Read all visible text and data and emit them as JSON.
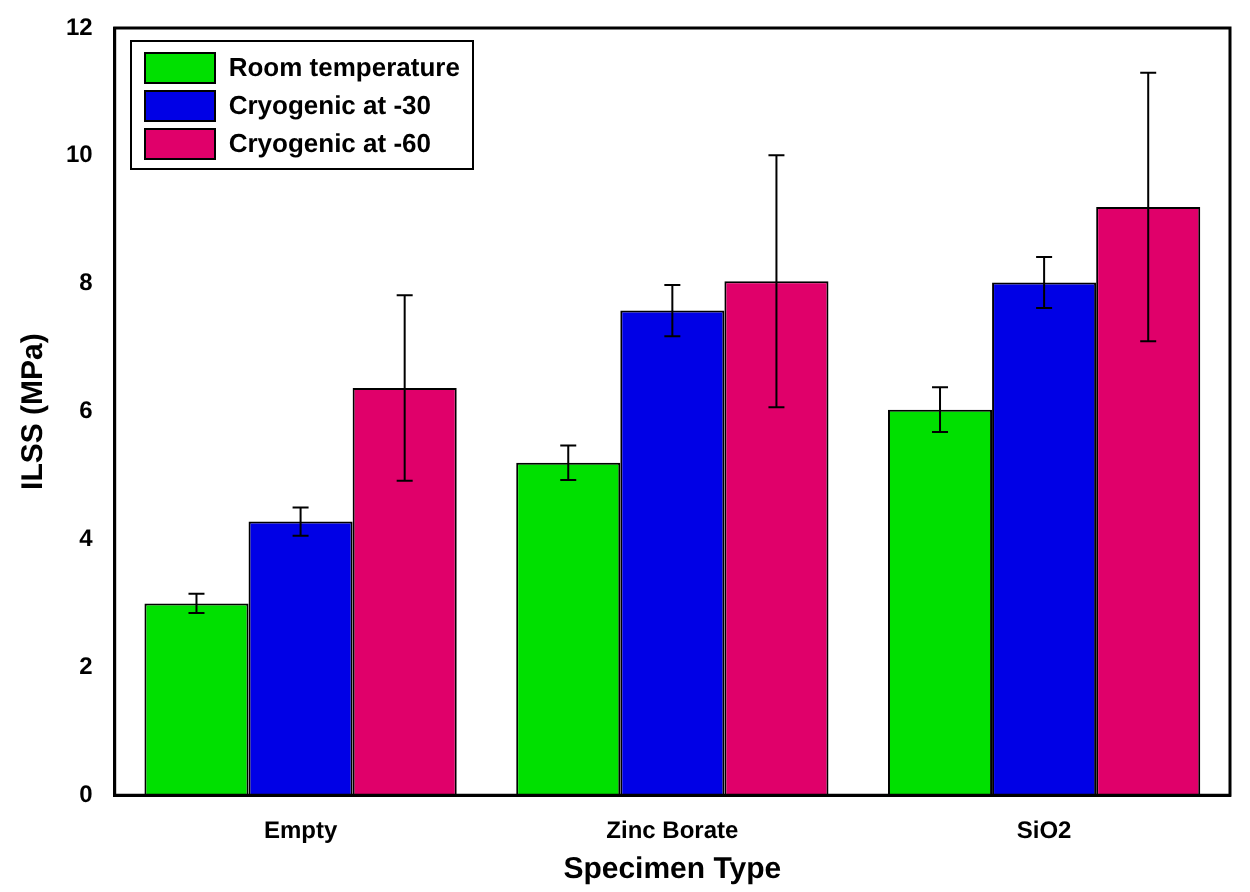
{
  "chart_data": {
    "type": "bar",
    "xlabel": "Specimen Type",
    "ylabel": "ILSS (MPa)",
    "categories": [
      "Empty",
      "Zinc Borate",
      "SiO2"
    ],
    "series": [
      {
        "name": "Room temperature",
        "color": "#00e000",
        "values": [
          3.0,
          5.2,
          6.03
        ],
        "errors": [
          0.15,
          0.27,
          0.35
        ]
      },
      {
        "name": "Cryogenic at -30",
        "color": "#0000e6",
        "values": [
          4.28,
          7.58,
          8.02
        ],
        "errors": [
          0.22,
          0.4,
          0.4
        ]
      },
      {
        "name": "Cryogenic at -60",
        "color": "#e0006a",
        "values": [
          6.37,
          8.04,
          9.2
        ],
        "errors": [
          1.45,
          1.97,
          2.1
        ]
      }
    ],
    "ylim": [
      0,
      12
    ],
    "yticks": [
      0,
      2,
      4,
      6,
      8,
      10,
      12
    ],
    "grid": false,
    "legend": "top left"
  }
}
